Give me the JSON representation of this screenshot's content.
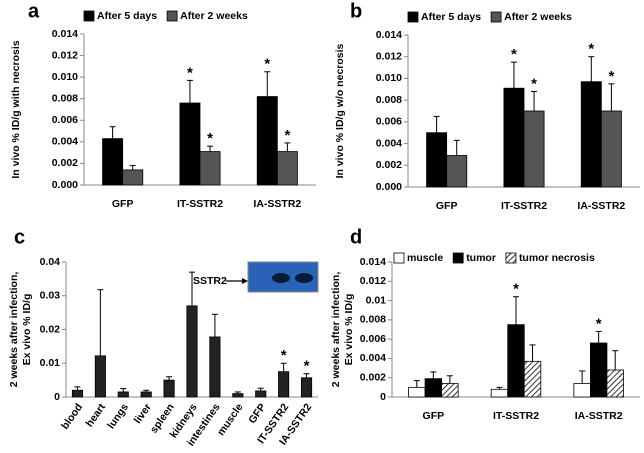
{
  "chart_data": [
    {
      "type": "bar",
      "label": "a",
      "ylabel": [
        "In vivo % ID/g with necrosis"
      ],
      "categories": [
        "GFP",
        "IT-SSTR2",
        "IA-SSTR2"
      ],
      "series": [
        {
          "name": "After 5 days",
          "color": "#000000",
          "values": [
            0.0043,
            0.0076,
            0.0082
          ],
          "errors": [
            0.0011,
            0.0021,
            0.0023
          ],
          "markers": [
            null,
            "*",
            "*"
          ]
        },
        {
          "name": "After 2 weeks",
          "color": "#555555",
          "values": [
            0.0014,
            0.0031,
            0.0031
          ],
          "errors": [
            0.0004,
            0.0005,
            0.0008
          ],
          "markers": [
            null,
            "*",
            "*"
          ]
        }
      ],
      "ylim": [
        0,
        0.014
      ],
      "yticks": [
        {
          "value": 0,
          "label": "0.000"
        },
        {
          "value": 0.002,
          "label": "0.002"
        },
        {
          "value": 0.004,
          "label": "0.004"
        },
        {
          "value": 0.006,
          "label": "0.006"
        },
        {
          "value": 0.008,
          "label": "0.008"
        },
        {
          "value": 0.01,
          "label": "0.010"
        },
        {
          "value": 0.012,
          "label": "0.012"
        },
        {
          "value": 0.014,
          "label": "0.014"
        }
      ]
    },
    {
      "type": "bar",
      "label": "b",
      "ylabel": [
        "In vivo % ID/g w/o necrosis"
      ],
      "categories": [
        "GFP",
        "IT-SSTR2",
        "IA-SSTR2"
      ],
      "series": [
        {
          "name": "After 5 days",
          "color": "#000000",
          "values": [
            0.005,
            0.0091,
            0.0097
          ],
          "errors": [
            0.0015,
            0.0024,
            0.0023
          ],
          "markers": [
            null,
            "*",
            "*"
          ]
        },
        {
          "name": "After 2 weeks",
          "color": "#555555",
          "values": [
            0.0029,
            0.007,
            0.007
          ],
          "errors": [
            0.0014,
            0.0018,
            0.0025
          ],
          "markers": [
            null,
            "*",
            "*"
          ]
        }
      ],
      "ylim": [
        0,
        0.014
      ],
      "yticks": [
        {
          "value": 0,
          "label": "0.000"
        },
        {
          "value": 0.002,
          "label": "0.002"
        },
        {
          "value": 0.004,
          "label": "0.004"
        },
        {
          "value": 0.006,
          "label": "0.006"
        },
        {
          "value": 0.008,
          "label": "0.008"
        },
        {
          "value": 0.01,
          "label": "0.010"
        },
        {
          "value": 0.012,
          "label": "0.012"
        },
        {
          "value": 0.014,
          "label": "0.014"
        }
      ]
    },
    {
      "type": "bar",
      "label": "c",
      "ylabel": [
        "2 weeks after infection,",
        "Ex vivo % ID/g"
      ],
      "inset_label": "SSTR2",
      "categories": [
        "blood",
        "heart",
        "lungs",
        "liver",
        "spleen",
        "kidneys",
        "intestines",
        "muscle",
        "GFP",
        "IT-SSTR2",
        "IA-SSTR2"
      ],
      "series": [
        {
          "color": "#222222",
          "values": [
            0.002,
            0.0122,
            0.0015,
            0.0015,
            0.005,
            0.027,
            0.0178,
            0.001,
            0.0018,
            0.0075,
            0.0057
          ],
          "errors": [
            0.001,
            0.0196,
            0.001,
            0.0005,
            0.001,
            0.01,
            0.0067,
            0.0005,
            0.0008,
            0.0025,
            0.0012
          ],
          "markers": [
            null,
            null,
            null,
            null,
            null,
            null,
            null,
            null,
            null,
            "*",
            "*"
          ]
        }
      ],
      "ylim": [
        0,
        0.04
      ],
      "yticks": [
        0,
        0.01,
        0.02,
        0.03,
        0.04
      ]
    },
    {
      "type": "bar",
      "label": "d",
      "ylabel": [
        "2 weeks after infection,",
        "Ex vivo % ID/g"
      ],
      "categories": [
        "GFP",
        "IT-SSTR2",
        "IA-SSTR2"
      ],
      "series": [
        {
          "name": "muscle",
          "color": "#ffffff",
          "values": [
            0.001,
            0.0008,
            0.0014
          ],
          "errors": [
            0.0007,
            0.0002,
            0.0013
          ],
          "markers": [
            null,
            null,
            null
          ]
        },
        {
          "name": "tumor",
          "color": "#000000",
          "values": [
            0.0019,
            0.0075,
            0.0056
          ],
          "errors": [
            0.0007,
            0.0029,
            0.0012
          ],
          "markers": [
            null,
            "*",
            "*"
          ]
        },
        {
          "name": "tumor necrosis",
          "color": "#ffffff",
          "hatch": true,
          "values": [
            0.0014,
            0.0037,
            0.0028
          ],
          "errors": [
            0.0008,
            0.0017,
            0.002
          ],
          "markers": [
            null,
            null,
            null
          ]
        }
      ],
      "ylim": [
        0,
        0.014
      ],
      "yticks": [
        0,
        0.002,
        0.004,
        0.006,
        0.008,
        0.01,
        0.012,
        0.014
      ]
    }
  ]
}
